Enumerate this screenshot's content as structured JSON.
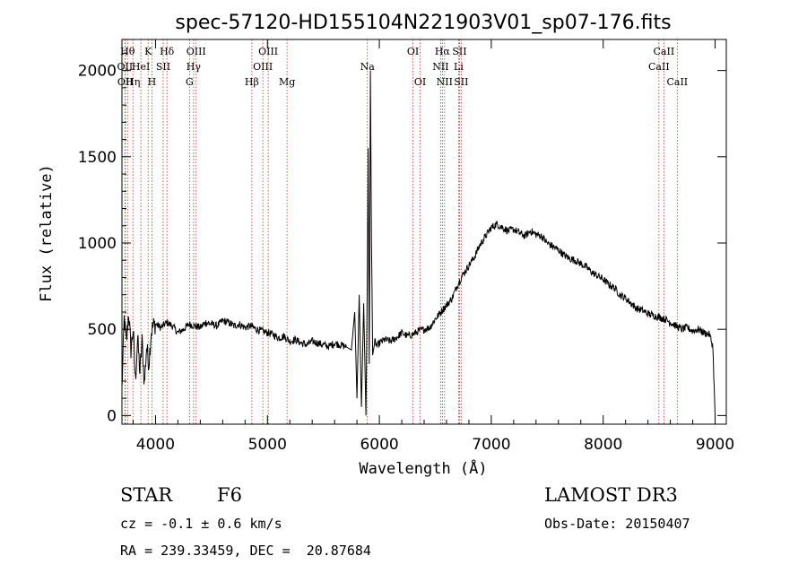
{
  "chart_data": {
    "type": "line",
    "title": "spec-57120-HD155104N221903V01_sp07-176.fits",
    "xlabel": "Wavelength (Å)",
    "ylabel": "Flux (relative)",
    "xlim": [
      3700,
      9100
    ],
    "ylim": [
      -50,
      2180
    ],
    "xticks": [
      4000,
      5000,
      6000,
      7000,
      8000,
      9000
    ],
    "yticks": [
      0,
      500,
      1000,
      1500,
      2000
    ],
    "grid": false,
    "series": [
      {
        "x": [
          3700,
          3720,
          3740,
          3760,
          3780,
          3800,
          3820,
          3840,
          3860,
          3880,
          3900,
          3920,
          3940,
          3960,
          3980,
          4000,
          4050,
          4100,
          4150,
          4200,
          4250,
          4300,
          4350,
          4400,
          4450,
          4500,
          4550,
          4600,
          4650,
          4700,
          4750,
          4800,
          4850,
          4900,
          4950,
          5000,
          5050,
          5100,
          5150,
          5200,
          5250,
          5300,
          5350,
          5400,
          5450,
          5500,
          5550,
          5600,
          5650,
          5700,
          5750,
          5780,
          5800,
          5820,
          5840,
          5860,
          5880,
          5890,
          5900,
          5910,
          5920,
          5930,
          5940,
          5960,
          5980,
          6000,
          6050,
          6100,
          6150,
          6200,
          6250,
          6300,
          6350,
          6400,
          6450,
          6500,
          6550,
          6600,
          6650,
          6700,
          6750,
          6800,
          6850,
          6900,
          6950,
          7000,
          7050,
          7100,
          7150,
          7200,
          7250,
          7300,
          7350,
          7400,
          7450,
          7500,
          7550,
          7600,
          7650,
          7700,
          7750,
          7800,
          7850,
          7900,
          7950,
          8000,
          8050,
          8100,
          8150,
          8200,
          8250,
          8300,
          8350,
          8400,
          8450,
          8500,
          8550,
          8600,
          8650,
          8700,
          8750,
          8800,
          8850,
          8900,
          8950,
          8980,
          9000
        ],
        "y": [
          150,
          560,
          420,
          600,
          380,
          500,
          200,
          450,
          250,
          430,
          180,
          400,
          300,
          480,
          520,
          530,
          510,
          540,
          520,
          480,
          500,
          530,
          520,
          510,
          540,
          530,
          520,
          550,
          540,
          520,
          530,
          510,
          520,
          500,
          490,
          480,
          470,
          450,
          460,
          430,
          440,
          420,
          410,
          430,
          420,
          410,
          400,
          420,
          410,
          400,
          380,
          600,
          100,
          700,
          50,
          650,
          0,
          600,
          1550,
          300,
          2000,
          1000,
          350,
          430,
          400,
          420,
          440,
          430,
          450,
          480,
          460,
          470,
          490,
          500,
          510,
          560,
          600,
          640,
          680,
          760,
          820,
          870,
          920,
          990,
          1040,
          1090,
          1110,
          1090,
          1070,
          1080,
          1060,
          1040,
          1070,
          1050,
          1040,
          1000,
          980,
          960,
          930,
          910,
          900,
          880,
          860,
          830,
          810,
          790,
          760,
          740,
          700,
          680,
          650,
          620,
          610,
          590,
          580,
          570,
          560,
          540,
          520,
          500,
          510,
          490,
          500,
          480,
          470,
          400,
          0
        ]
      }
    ],
    "line_markers": [
      {
        "x": 3750,
        "label": "Hθ",
        "row": 0
      },
      {
        "x": 3727,
        "label": "OII",
        "row": 1
      },
      {
        "x": 3730,
        "label": "OII",
        "row": 2
      },
      {
        "x": 3798,
        "label": "Hη",
        "row": 2
      },
      {
        "x": 3869,
        "label": "HeI",
        "row": 1
      },
      {
        "x": 3934,
        "label": "K",
        "row": 0
      },
      {
        "x": 3968,
        "label": "H",
        "row": 2
      },
      {
        "x": 4068,
        "label": "SII",
        "row": 1
      },
      {
        "x": 4102,
        "label": "Hδ",
        "row": 0
      },
      {
        "x": 4340,
        "label": "Hγ",
        "row": 1
      },
      {
        "x": 4304,
        "label": "G",
        "row": 2
      },
      {
        "x": 4363,
        "label": "OIII",
        "row": 0
      },
      {
        "x": 4861,
        "label": "Hβ",
        "row": 2
      },
      {
        "x": 4959,
        "label": "OIII",
        "row": 1
      },
      {
        "x": 5007,
        "label": "OIII",
        "row": 0
      },
      {
        "x": 5175,
        "label": "Mg",
        "row": 2
      },
      {
        "x": 5893,
        "label": "Na",
        "row": 1
      },
      {
        "x": 6300,
        "label": "OI",
        "row": 0
      },
      {
        "x": 6364,
        "label": "OI",
        "row": 2
      },
      {
        "x": 6548,
        "label": "NII",
        "row": 1
      },
      {
        "x": 6563,
        "label": "Hα",
        "row": 0
      },
      {
        "x": 6583,
        "label": "NII",
        "row": 2
      },
      {
        "x": 6708,
        "label": "Li",
        "row": 1
      },
      {
        "x": 6716,
        "label": "SII",
        "row": 0
      },
      {
        "x": 6731,
        "label": "SII",
        "row": 2
      },
      {
        "x": 8498,
        "label": "CaII",
        "row": 1
      },
      {
        "x": 8542,
        "label": "CaII",
        "row": 0
      },
      {
        "x": 8662,
        "label": "CaII",
        "row": 2
      }
    ]
  },
  "info": {
    "class": "STAR",
    "subclass": "F6",
    "survey": "LAMOST DR3",
    "cz": "cz = -0.1 ± 0.6 km/s",
    "obs_date": "Obs-Date: 20150407",
    "coords": "RA = 239.33459, DEC =  20.87684"
  }
}
